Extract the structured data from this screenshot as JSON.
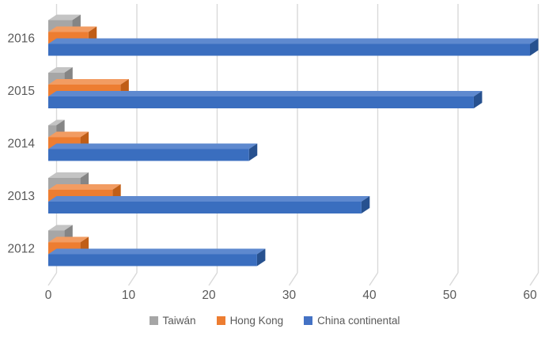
{
  "chart_data": {
    "type": "bar",
    "orientation": "horizontal",
    "style": "3d",
    "title": "",
    "xlabel": "",
    "ylabel": "",
    "categories": [
      "2016",
      "2015",
      "2014",
      "2013",
      "2012"
    ],
    "series": [
      {
        "name": "Taiwán",
        "color": "#A6A6A6",
        "shades": {
          "front": "#A6A6A6",
          "top": "#C4C4C4",
          "side": "#858585"
        },
        "values": [
          3,
          2,
          1,
          4,
          2
        ]
      },
      {
        "name": "Hong Kong",
        "color": "#ED7D31",
        "shades": {
          "front": "#ED7D31",
          "top": "#F29C62",
          "side": "#C05E17"
        },
        "values": [
          5,
          9,
          4,
          8,
          4
        ]
      },
      {
        "name": "China continental",
        "color": "#4472C4",
        "shades": {
          "front": "#3A6EBF",
          "top": "#5E89CF",
          "side": "#27518F"
        },
        "values": [
          60,
          53,
          25,
          39,
          26
        ]
      }
    ],
    "x_ticks": [
      0,
      10,
      20,
      30,
      40,
      50,
      60
    ],
    "xlim": [
      0,
      61
    ],
    "grid": true,
    "legend_position": "bottom",
    "background_color": "#FFFFFF",
    "gridline_color": "#D9D9D9",
    "axis_text_color": "#595959"
  }
}
